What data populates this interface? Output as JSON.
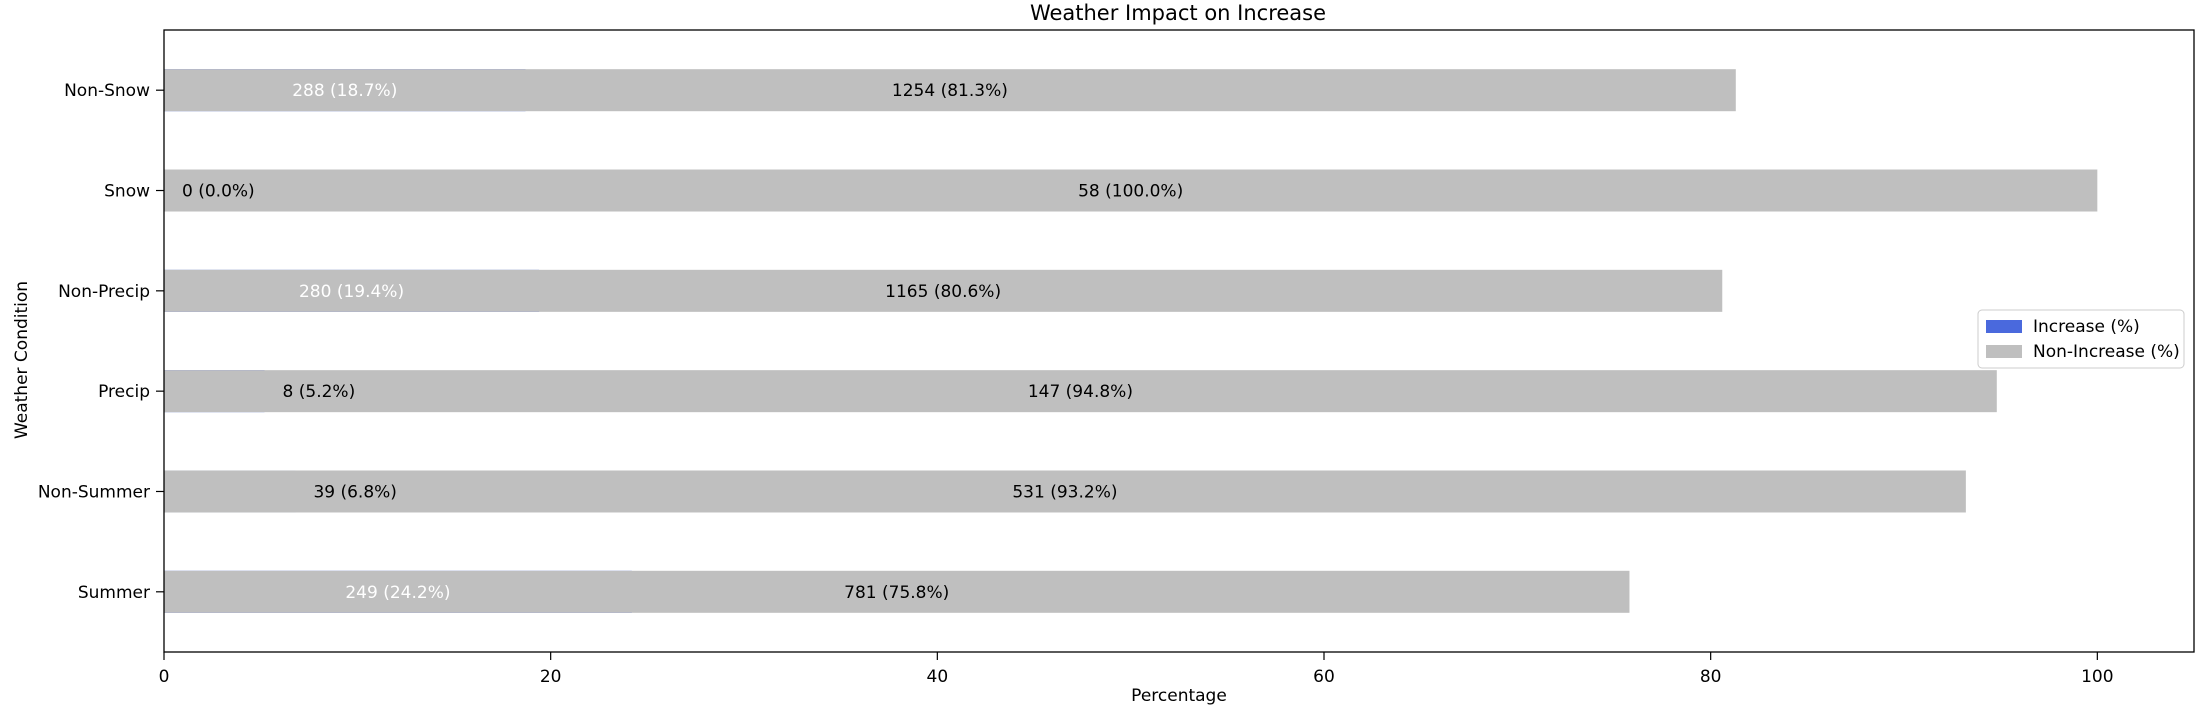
{
  "chart_data": {
    "type": "bar",
    "orientation": "horizontal",
    "stacked": true,
    "title": "Weather Impact on Increase",
    "xlabel": "Percentage",
    "ylabel": "Weather Condition",
    "xlim": [
      0,
      105
    ],
    "xticks": [
      "0",
      "20",
      "40",
      "60",
      "80",
      "100"
    ],
    "categories": [
      "Non-Snow",
      "Snow",
      "Non-Precip",
      "Precip",
      "Non-Summer",
      "Summer"
    ],
    "series": [
      {
        "name": "Increase (%)",
        "color": "#4a69dd",
        "values": [
          18.7,
          0.0,
          19.4,
          5.2,
          6.8,
          24.2
        ],
        "labels": [
          "288 (18.7%)",
          "0 (0.0%)",
          "280 (19.4%)",
          "8 (5.2%)",
          "39 (6.8%)",
          "249 (24.2%)"
        ]
      },
      {
        "name": "Non-Increase (%)",
        "color": "#bfbfbf",
        "values": [
          81.3,
          100.0,
          80.6,
          94.8,
          93.2,
          75.8
        ],
        "labels": [
          "1254 (81.3%)",
          "58 (100.0%)",
          "1165 (80.6%)",
          "147 (94.8%)",
          "531 (93.2%)",
          "781 (75.8%)"
        ]
      }
    ],
    "grid": false,
    "legend_position": "center-right"
  }
}
